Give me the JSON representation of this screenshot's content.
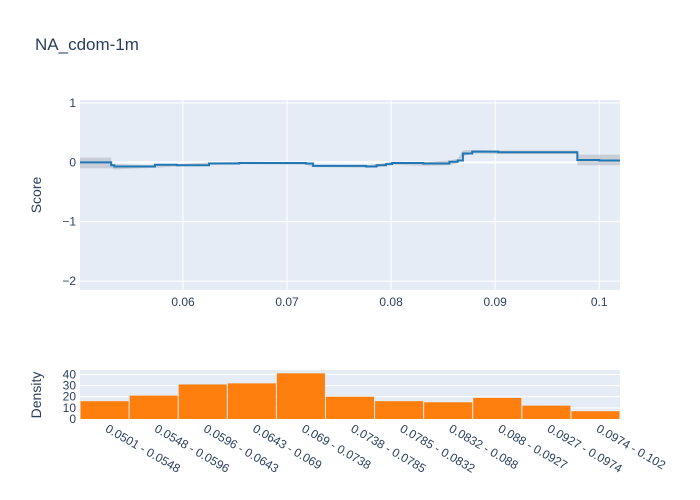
{
  "chart_data": [
    {
      "type": "line",
      "title": "NA_cdom-1m",
      "xlabel": "",
      "ylabel": "Score",
      "xlim": [
        0.0501,
        0.102
      ],
      "ylim": [
        -2.15,
        1.05
      ],
      "grid": true,
      "xticks": [
        "0.06",
        "0.07",
        "0.08",
        "0.09",
        "0.1"
      ],
      "yticks": [
        "1",
        "0",
        "−1",
        "−2"
      ],
      "colors": {
        "line": "#1f77b4",
        "band": "#b4b9c3",
        "plot_bg": "#e5ecf6"
      },
      "series": [
        {
          "values": [
            {
              "x": 0.0501,
              "y": 0.0
            },
            {
              "x": 0.0531,
              "y": 0.0
            },
            {
              "x": 0.0531,
              "y": -0.05
            },
            {
              "x": 0.0534,
              "y": -0.05
            },
            {
              "x": 0.0534,
              "y": -0.07
            },
            {
              "x": 0.0573,
              "y": -0.07
            },
            {
              "x": 0.0573,
              "y": -0.04
            },
            {
              "x": 0.0594,
              "y": -0.04
            },
            {
              "x": 0.0594,
              "y": -0.05
            },
            {
              "x": 0.0625,
              "y": -0.05
            },
            {
              "x": 0.0625,
              "y": -0.02
            },
            {
              "x": 0.0654,
              "y": -0.02
            },
            {
              "x": 0.0654,
              "y": -0.01
            },
            {
              "x": 0.0718,
              "y": -0.01
            },
            {
              "x": 0.0718,
              "y": -0.02
            },
            {
              "x": 0.0725,
              "y": -0.02
            },
            {
              "x": 0.0725,
              "y": -0.06
            },
            {
              "x": 0.0776,
              "y": -0.06
            },
            {
              "x": 0.0776,
              "y": -0.07
            },
            {
              "x": 0.0786,
              "y": -0.07
            },
            {
              "x": 0.0786,
              "y": -0.05
            },
            {
              "x": 0.0795,
              "y": -0.05
            },
            {
              "x": 0.0795,
              "y": -0.03
            },
            {
              "x": 0.0801,
              "y": -0.03
            },
            {
              "x": 0.0801,
              "y": -0.01
            },
            {
              "x": 0.0831,
              "y": -0.01
            },
            {
              "x": 0.0831,
              "y": -0.02
            },
            {
              "x": 0.0856,
              "y": -0.02
            },
            {
              "x": 0.0856,
              "y": 0.01
            },
            {
              "x": 0.0864,
              "y": 0.01
            },
            {
              "x": 0.0864,
              "y": 0.03
            },
            {
              "x": 0.0869,
              "y": 0.03
            },
            {
              "x": 0.0869,
              "y": 0.15
            },
            {
              "x": 0.0878,
              "y": 0.15
            },
            {
              "x": 0.0878,
              "y": 0.18
            },
            {
              "x": 0.0903,
              "y": 0.18
            },
            {
              "x": 0.0903,
              "y": 0.17
            },
            {
              "x": 0.0979,
              "y": 0.17
            },
            {
              "x": 0.0979,
              "y": 0.04
            },
            {
              "x": 0.1,
              "y": 0.04
            },
            {
              "x": 0.1,
              "y": 0.03
            },
            {
              "x": 0.102,
              "y": 0.03
            }
          ],
          "band": [
            {
              "x": 0.0501,
              "lo": -0.1,
              "hi": 0.08
            },
            {
              "x": 0.0531,
              "lo": -0.1,
              "hi": 0.08
            },
            {
              "x": 0.0531,
              "lo": -0.1,
              "hi": -0.03
            },
            {
              "x": 0.0534,
              "lo": -0.12,
              "hi": -0.03
            },
            {
              "x": 0.0573,
              "lo": -0.09,
              "hi": -0.05
            },
            {
              "x": 0.0594,
              "lo": -0.07,
              "hi": -0.03
            },
            {
              "x": 0.0625,
              "lo": -0.04,
              "hi": 0.0
            },
            {
              "x": 0.0654,
              "lo": -0.03,
              "hi": 0.01
            },
            {
              "x": 0.0718,
              "lo": -0.04,
              "hi": 0.0
            },
            {
              "x": 0.0725,
              "lo": -0.08,
              "hi": -0.04
            },
            {
              "x": 0.0776,
              "lo": -0.09,
              "hi": -0.05
            },
            {
              "x": 0.0786,
              "lo": -0.08,
              "hi": -0.03
            },
            {
              "x": 0.0801,
              "lo": -0.04,
              "hi": 0.01
            },
            {
              "x": 0.0831,
              "lo": -0.06,
              "hi": 0.0
            },
            {
              "x": 0.0856,
              "lo": -0.05,
              "hi": 0.03
            },
            {
              "x": 0.0864,
              "lo": -0.01,
              "hi": 0.06
            },
            {
              "x": 0.0869,
              "lo": 0.1,
              "hi": 0.2
            },
            {
              "x": 0.0878,
              "lo": 0.15,
              "hi": 0.21
            },
            {
              "x": 0.0903,
              "lo": 0.14,
              "hi": 0.2
            },
            {
              "x": 0.0979,
              "lo": 0.14,
              "hi": 0.2
            },
            {
              "x": 0.0979,
              "lo": -0.05,
              "hi": 0.13
            },
            {
              "x": 0.102,
              "lo": -0.05,
              "hi": 0.13
            }
          ]
        }
      ]
    },
    {
      "type": "bar",
      "xlabel": "",
      "ylabel": "Density",
      "ylim": [
        0,
        44
      ],
      "yticks": [
        "0",
        "10",
        "20",
        "30",
        "40"
      ],
      "colors": {
        "bar": "#ff7f0e",
        "plot_bg": "#e5ecf6"
      },
      "categories": [
        "0.0501 - 0.0548",
        "0.0548 - 0.0596",
        "0.0596 - 0.0643",
        "0.0643 - 0.069",
        "0.069 - 0.0738",
        "0.0738 - 0.0785",
        "0.0785 - 0.0832",
        "0.0832 - 0.088",
        "0.088 - 0.0927",
        "0.0927 - 0.0974",
        "0.0974 - 0.102"
      ],
      "values": [
        16,
        21,
        31,
        32,
        41,
        20,
        16,
        15,
        19,
        12,
        7
      ]
    }
  ]
}
